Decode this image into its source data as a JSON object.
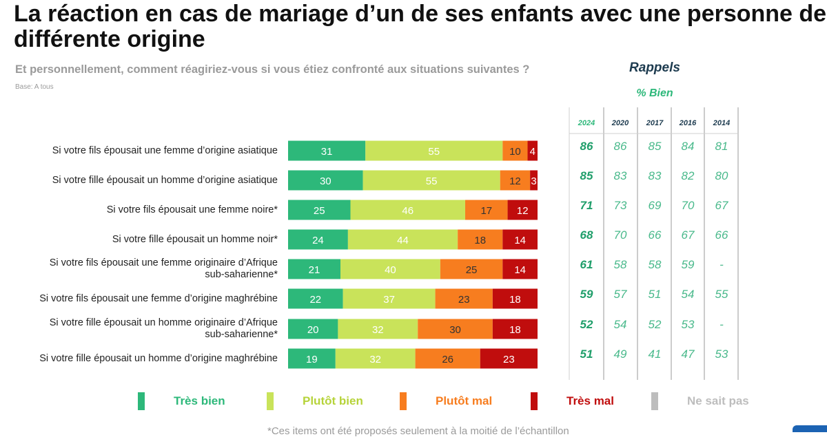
{
  "header": {
    "title_line1": "La réaction en cas de mariage d’un de ses enfants avec une personne de",
    "title_line2": "différente origine",
    "subtitle": "Et personnellement, comment réagiriez-vous si vous étiez confronté aux situations suivantes ?",
    "base": "Base: A tous"
  },
  "rappels": {
    "title": "Rappels",
    "subtitle": "% Bien",
    "years": [
      "2024",
      "2020",
      "2017",
      "2016",
      "2014"
    ],
    "rows": [
      [
        "86",
        "86",
        "85",
        "84",
        "81"
      ],
      [
        "85",
        "83",
        "83",
        "82",
        "80"
      ],
      [
        "71",
        "73",
        "69",
        "70",
        "67"
      ],
      [
        "68",
        "70",
        "66",
        "67",
        "66"
      ],
      [
        "61",
        "58",
        "58",
        "59",
        "-"
      ],
      [
        "59",
        "57",
        "51",
        "54",
        "55"
      ],
      [
        "52",
        "54",
        "52",
        "53",
        "-"
      ],
      [
        "51",
        "49",
        "41",
        "47",
        "53"
      ]
    ]
  },
  "chart_data": {
    "type": "bar",
    "orientation": "horizontal",
    "stacked": true,
    "categories": [
      "Si votre fils épousait une femme d’origine asiatique",
      "Si votre fille épousait un homme d’origine asiatique",
      "Si votre fils épousait une femme noire*",
      "Si votre fille épousait un homme noir*",
      "Si votre fils épousait une femme originaire d’Afrique sub-saharienne*",
      "Si votre fils épousait une femme d’origine maghrébine",
      "Si votre fille épousait un homme originaire d’Afrique sub-saharienne*",
      "Si votre fille épousait un homme d’origine maghrébine"
    ],
    "category_lines": [
      [
        "Si votre fils épousait une femme d’origine asiatique"
      ],
      [
        "Si votre fille épousait un homme d’origine asiatique"
      ],
      [
        "Si votre fils épousait une femme noire*"
      ],
      [
        "Si votre fille épousait un homme noir*"
      ],
      [
        "Si votre fils épousait une femme originaire d’Afrique",
        "sub-saharienne*"
      ],
      [
        "Si votre fils épousait une femme d’origine maghrébine"
      ],
      [
        "Si votre fille épousait un homme originaire d’Afrique",
        "sub-saharienne*"
      ],
      [
        "Si votre fille épousait un homme d’origine maghrébine"
      ]
    ],
    "series": [
      {
        "name": "Très bien",
        "color": "#2db87a",
        "label_color": "#ffffff",
        "values": [
          31,
          30,
          25,
          24,
          21,
          22,
          20,
          19
        ]
      },
      {
        "name": "Plutôt bien",
        "color": "#c9e35a",
        "label_color": "#ffffff",
        "values": [
          55,
          55,
          46,
          44,
          40,
          37,
          32,
          32
        ]
      },
      {
        "name": "Plutôt mal",
        "color": "#f77d1f",
        "label_color": "#333333",
        "values": [
          10,
          12,
          17,
          18,
          25,
          23,
          30,
          26
        ]
      },
      {
        "name": "Très mal",
        "color": "#c00d0d",
        "label_color": "#ffffff",
        "values": [
          4,
          3,
          12,
          14,
          14,
          18,
          18,
          23
        ]
      },
      {
        "name": "Ne sait pas",
        "color": "#bdbdbd",
        "label_color": "#ffffff",
        "values": [
          0,
          0,
          0,
          0,
          0,
          0,
          0,
          0
        ]
      }
    ],
    "legend_position": "bottom",
    "legend_text_colors": [
      "#2db87a",
      "#b6d33a",
      "#f77d1f",
      "#c00d0d",
      "#bdbdbd"
    ],
    "xlim": [
      0,
      100
    ],
    "grid": false
  },
  "footnote": "*Ces items ont été proposés seulement à la moitié de l’échantillon"
}
